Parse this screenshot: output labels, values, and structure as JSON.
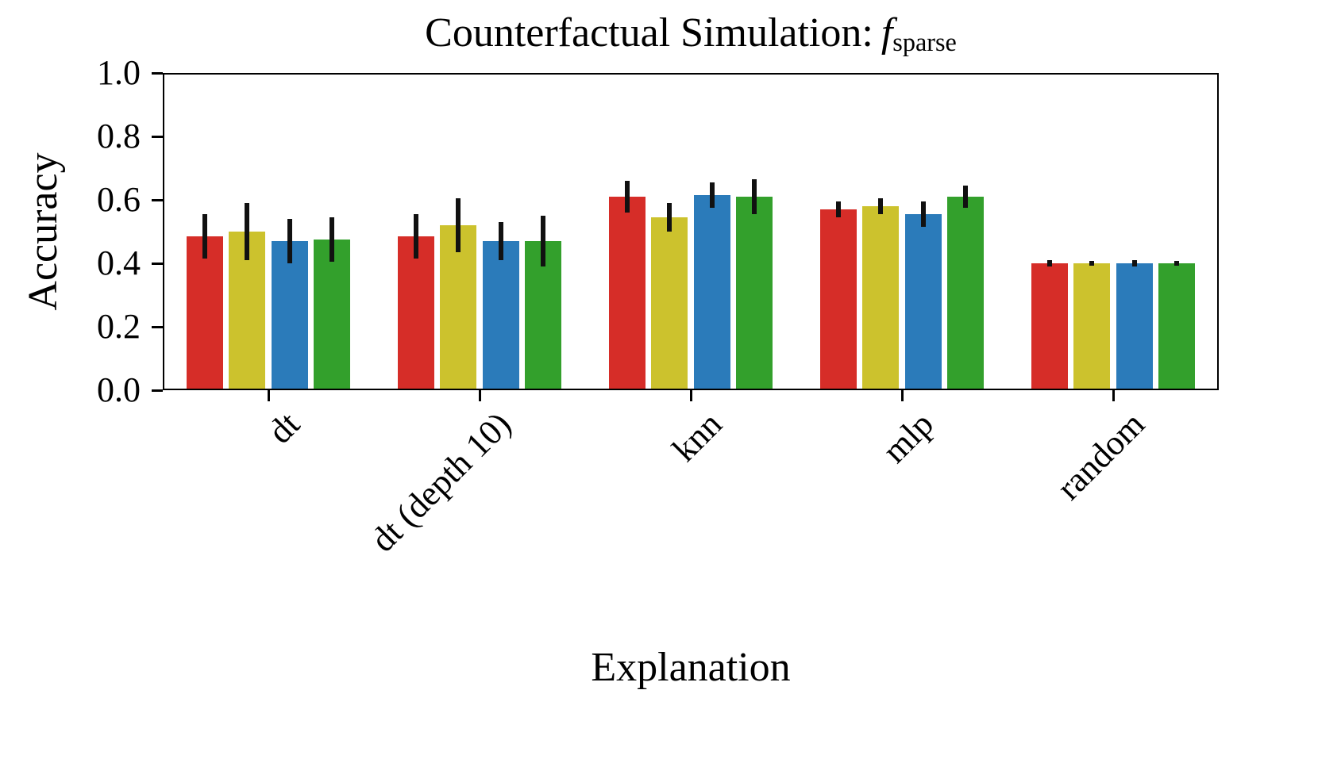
{
  "figure": {
    "background": "#ffffff"
  },
  "chart_data": {
    "type": "bar",
    "title": "Counterfactual Simulation: f_sparse",
    "title_prefix": "Counterfactual Simulation:",
    "title_math_f": "f",
    "title_subscript": "sparse",
    "xlabel": "Explanation",
    "ylabel": "Accuracy",
    "ylim": [
      0,
      1
    ],
    "yticks": [
      0,
      0.2,
      0.4,
      0.6,
      0.8,
      1
    ],
    "ytick_labels": [
      "0.0",
      "0.2",
      "0.4",
      "0.6",
      "0.8",
      "1.0"
    ],
    "categories": [
      "dt",
      "dt (depth 10)",
      "knn",
      "mlp",
      "random"
    ],
    "grid": false,
    "legend": "none",
    "error_bar_color": "#111111",
    "series": [
      {
        "name": "series-red",
        "color": "#d62d28",
        "values": [
          0.485,
          0.485,
          0.61,
          0.57,
          0.4
        ],
        "errors": [
          0.07,
          0.07,
          0.05,
          0.025,
          0.01
        ]
      },
      {
        "name": "series-yellow",
        "color": "#ccc22d",
        "values": [
          0.5,
          0.52,
          0.545,
          0.58,
          0.4
        ],
        "errors": [
          0.09,
          0.085,
          0.045,
          0.025,
          0.008
        ]
      },
      {
        "name": "series-blue",
        "color": "#2b7bba",
        "values": [
          0.47,
          0.47,
          0.615,
          0.555,
          0.4
        ],
        "errors": [
          0.07,
          0.06,
          0.04,
          0.04,
          0.01
        ]
      },
      {
        "name": "series-green",
        "color": "#33a02c",
        "values": [
          0.475,
          0.47,
          0.61,
          0.61,
          0.4
        ],
        "errors": [
          0.07,
          0.08,
          0.055,
          0.035,
          0.008
        ]
      }
    ]
  }
}
